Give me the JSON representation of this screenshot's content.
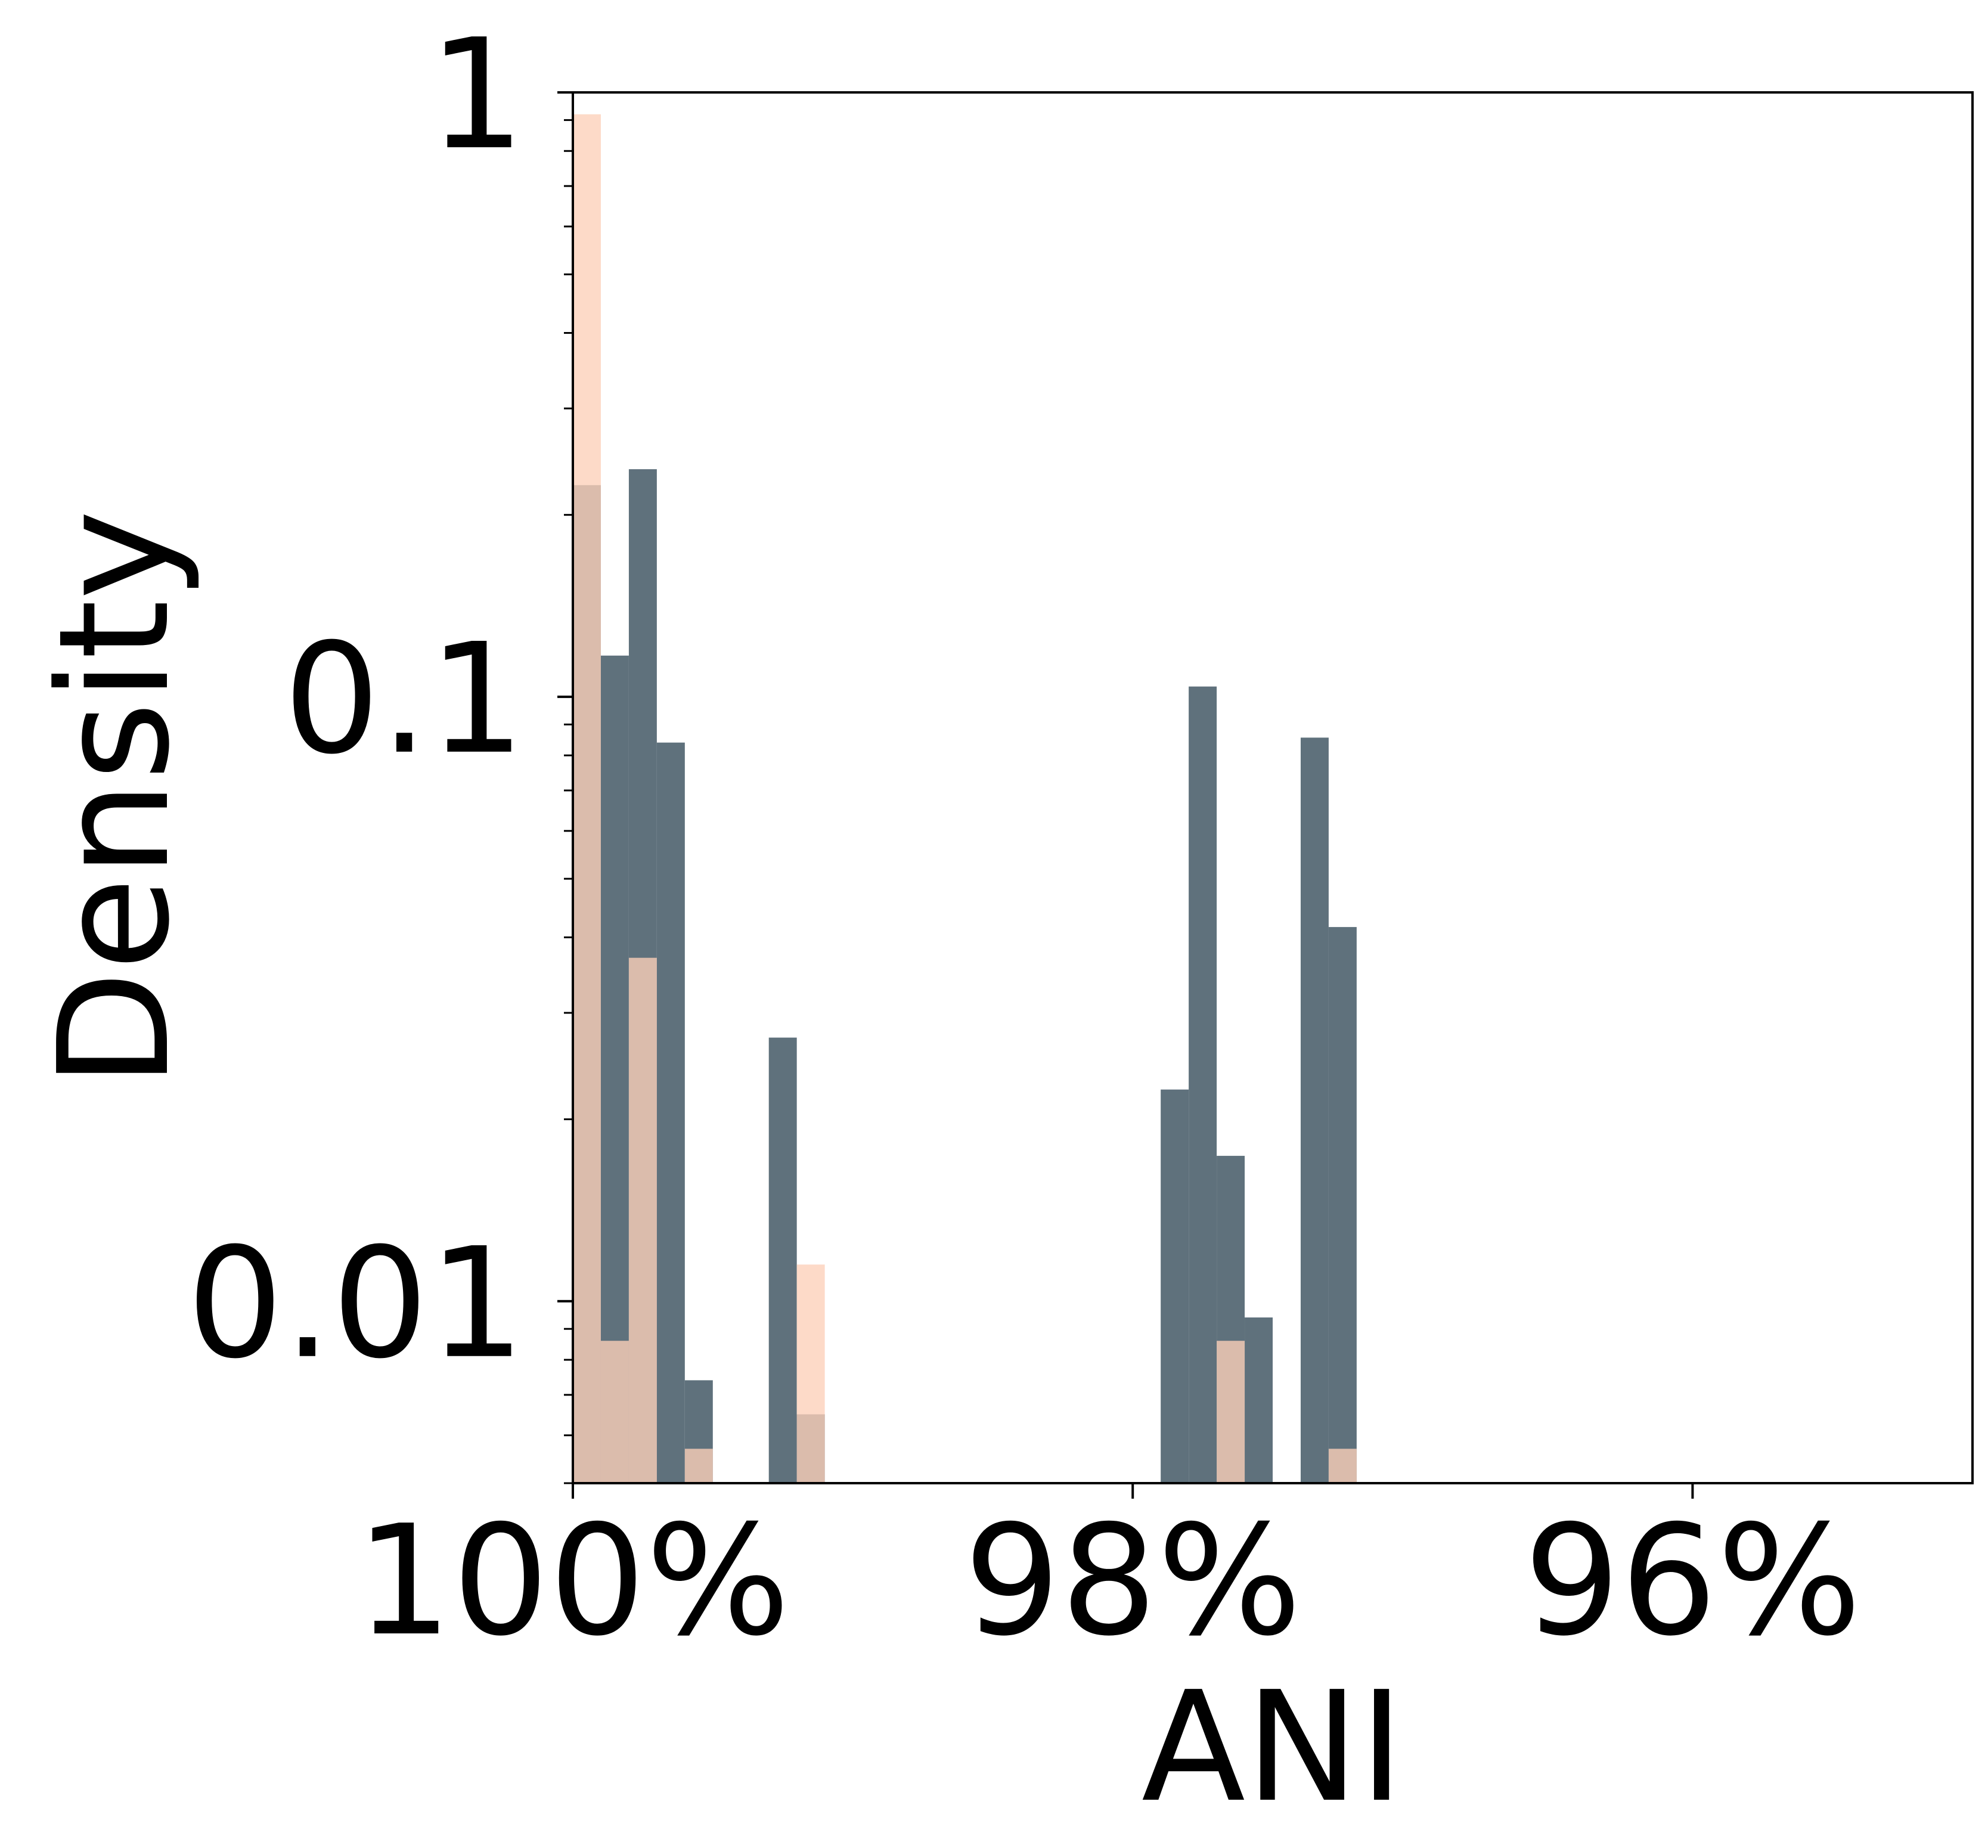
{
  "chart_data": {
    "type": "histogram",
    "xlabel": "ANI",
    "ylabel": "Density",
    "bins": [
      97.2,
      97.3,
      97.4,
      97.5,
      97.6,
      97.7,
      97.8,
      97.9,
      98.0,
      98.1,
      98.2,
      98.3,
      98.4,
      98.5,
      98.6,
      98.7,
      98.8,
      98.9,
      99.0,
      99.1,
      99.2,
      99.3,
      99.4,
      99.5,
      99.6,
      99.7,
      99.8,
      99.9,
      100.0
    ],
    "series": [
      {
        "color": "#5f717c",
        "alpha": 1,
        "values": [
          0.0416,
          0.0856,
          0,
          0.0094,
          0.0174,
          0.104,
          0.0224,
          0,
          0,
          0,
          0,
          0,
          0,
          0,
          0,
          0,
          0,
          0,
          0,
          0.0065,
          0.0273,
          0,
          0,
          0.0074,
          0.084,
          0.238,
          0.117,
          0.224
        ]
      },
      {
        "color": "#fcd0b9",
        "alpha": 0.79,
        "values": [
          0.0057,
          0,
          0,
          0,
          0.0086,
          0,
          0,
          0,
          0,
          0,
          0,
          0,
          0,
          0,
          0,
          0,
          0,
          0,
          0,
          0.0115,
          0,
          0,
          0,
          0.0057,
          0,
          0.037,
          0.0086,
          0.92
        ]
      }
    ],
    "xlim": [
      100,
      95
    ],
    "xticks": [
      {
        "value": 100,
        "label": "100%"
      },
      {
        "value": 98,
        "label": "98%"
      },
      {
        "value": 96,
        "label": "96%"
      }
    ],
    "ylim": [
      0.005,
      1
    ],
    "ylog": true,
    "yticks": [
      1,
      0.1,
      0.01
    ],
    "yminorticks": [
      0.005,
      0.006,
      0.007,
      0.008,
      0.009,
      0.02,
      0.03,
      0.04,
      0.05,
      0.06,
      0.07,
      0.08,
      0.09,
      0.2,
      0.3,
      0.4,
      0.5,
      0.6,
      0.7,
      0.8,
      0.9
    ],
    "grid": false
  }
}
